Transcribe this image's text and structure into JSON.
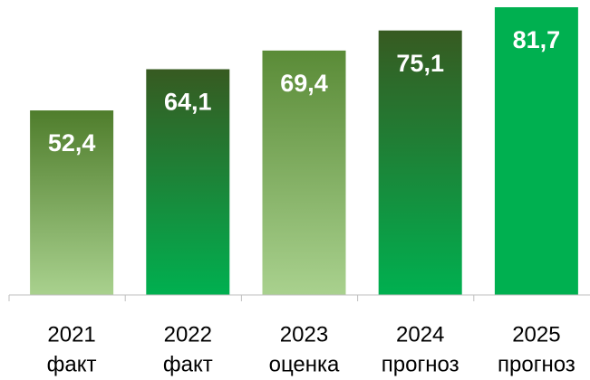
{
  "chart_data": {
    "type": "bar",
    "categories": [
      "2021",
      "2022",
      "2023",
      "2024",
      "2025"
    ],
    "category_notes": [
      "факт",
      "факт",
      "оценка",
      "прогноз",
      "прогноз"
    ],
    "values": [
      52.4,
      64.1,
      69.4,
      75.1,
      81.7
    ],
    "value_labels": [
      "52,4",
      "64,1",
      "69,4",
      "75,1",
      "81,7"
    ],
    "colors": [
      [
        "#4f7d2c",
        "#a9d18e"
      ],
      [
        "#375a21",
        "#00b050"
      ],
      [
        "#5a8b37",
        "#a9d18e"
      ],
      [
        "#375a21",
        "#00b050"
      ],
      [
        "#00b050",
        "#00b050"
      ]
    ]
  }
}
